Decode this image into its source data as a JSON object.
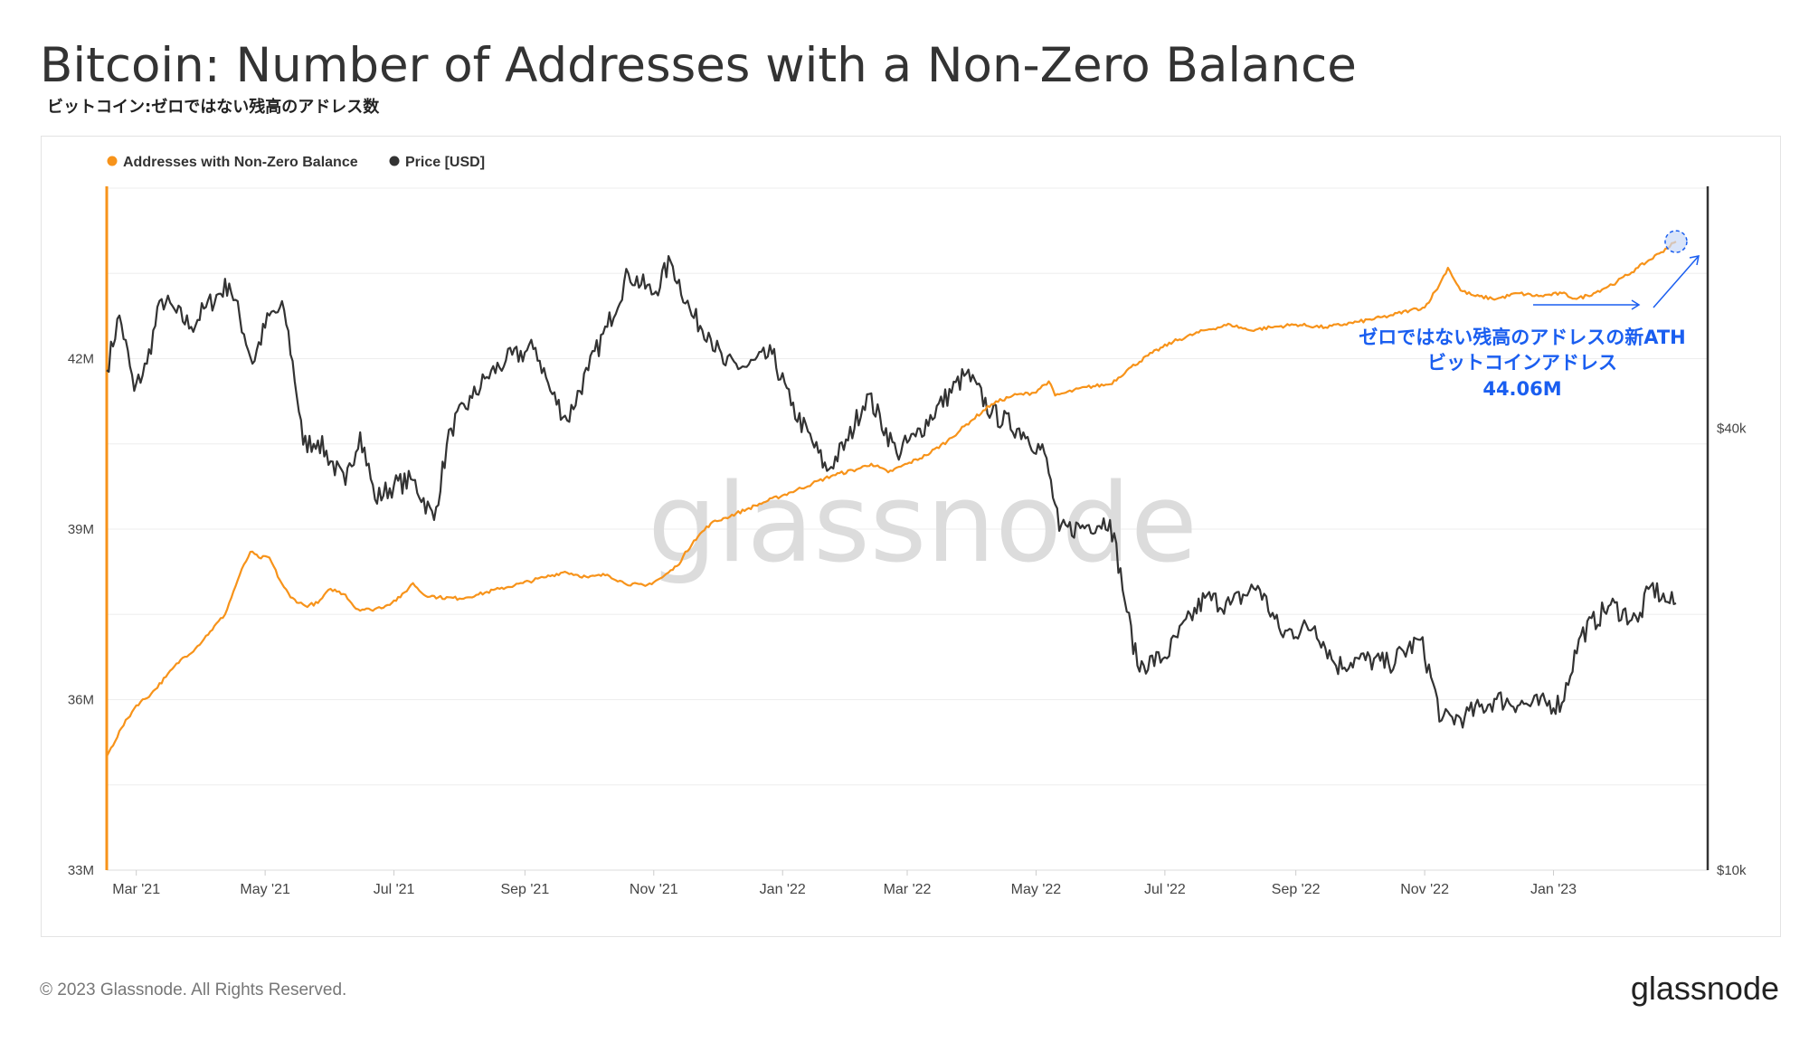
{
  "header": {
    "title": "Bitcoin: Number of Addresses with a Non-Zero Balance",
    "subtitle": "ビットコイン:ゼロではない残高のアドレス数"
  },
  "footer": {
    "copyright": "© 2023 Glassnode. All Rights Reserved.",
    "logo": "glassnode"
  },
  "watermark": "glassnode",
  "colors": {
    "addresses": "#f7931a",
    "price": "#333333",
    "annotation": "#1a5ef0",
    "grid": "#eeeeee"
  },
  "chart_data": {
    "type": "line",
    "legend_position": "top-left",
    "grid": true,
    "x_ticks": [
      "Mar '21",
      "May '21",
      "Jul '21",
      "Sep '21",
      "Nov '21",
      "Jan '22",
      "Mar '22",
      "May '22",
      "Jul '22",
      "Sep '22",
      "Nov '22",
      "Jan '23"
    ],
    "x_range": [
      "2021-02-15",
      "2023-03-15"
    ],
    "y_left": {
      "ticks": [
        "33M",
        "36M",
        "39M",
        "42M"
      ],
      "range": [
        33,
        45
      ]
    },
    "y_right": {
      "ticks": [
        "$10k",
        "$40k"
      ],
      "scale": "log",
      "range": [
        10000,
        85000
      ]
    },
    "series": [
      {
        "name": "Addresses with Non-Zero Balance",
        "axis": "left",
        "unit": "M",
        "points": [
          [
            "2021-02-15",
            35.0
          ],
          [
            "2021-02-22",
            35.5
          ],
          [
            "2021-03-01",
            35.9
          ],
          [
            "2021-03-08",
            36.1
          ],
          [
            "2021-03-15",
            36.4
          ],
          [
            "2021-03-22",
            36.7
          ],
          [
            "2021-03-29",
            36.9
          ],
          [
            "2021-04-05",
            37.2
          ],
          [
            "2021-04-12",
            37.5
          ],
          [
            "2021-04-19",
            38.2
          ],
          [
            "2021-04-24",
            38.6
          ],
          [
            "2021-04-28",
            38.5
          ],
          [
            "2021-05-03",
            38.5
          ],
          [
            "2021-05-08",
            38.1
          ],
          [
            "2021-05-13",
            37.8
          ],
          [
            "2021-05-20",
            37.65
          ],
          [
            "2021-05-26",
            37.7
          ],
          [
            "2021-06-01",
            37.95
          ],
          [
            "2021-06-08",
            37.85
          ],
          [
            "2021-06-13",
            37.6
          ],
          [
            "2021-06-20",
            37.58
          ],
          [
            "2021-06-27",
            37.65
          ],
          [
            "2021-07-04",
            37.8
          ],
          [
            "2021-07-10",
            38.05
          ],
          [
            "2021-07-15",
            37.85
          ],
          [
            "2021-07-22",
            37.8
          ],
          [
            "2021-08-01",
            37.78
          ],
          [
            "2021-08-10",
            37.85
          ],
          [
            "2021-08-20",
            37.95
          ],
          [
            "2021-08-31",
            38.05
          ],
          [
            "2021-09-10",
            38.15
          ],
          [
            "2021-09-20",
            38.25
          ],
          [
            "2021-09-25",
            38.2
          ],
          [
            "2021-10-01",
            38.15
          ],
          [
            "2021-10-10",
            38.2
          ],
          [
            "2021-10-18",
            38.05
          ],
          [
            "2021-10-28",
            38.0
          ],
          [
            "2021-11-05",
            38.15
          ],
          [
            "2021-11-12",
            38.35
          ],
          [
            "2021-11-20",
            38.8
          ],
          [
            "2021-11-28",
            39.1
          ],
          [
            "2021-12-05",
            39.2
          ],
          [
            "2021-12-15",
            39.35
          ],
          [
            "2021-12-25",
            39.5
          ],
          [
            "2022-01-05",
            39.65
          ],
          [
            "2022-01-15",
            39.8
          ],
          [
            "2022-01-25",
            39.95
          ],
          [
            "2022-02-05",
            40.05
          ],
          [
            "2022-02-12",
            40.15
          ],
          [
            "2022-02-20",
            40.0
          ],
          [
            "2022-03-01",
            40.15
          ],
          [
            "2022-03-10",
            40.3
          ],
          [
            "2022-03-20",
            40.55
          ],
          [
            "2022-03-31",
            40.9
          ],
          [
            "2022-04-10",
            41.2
          ],
          [
            "2022-04-20",
            41.35
          ],
          [
            "2022-04-30",
            41.4
          ],
          [
            "2022-05-07",
            41.6
          ],
          [
            "2022-05-10",
            41.35
          ],
          [
            "2022-05-15",
            41.4
          ],
          [
            "2022-05-25",
            41.5
          ],
          [
            "2022-06-05",
            41.55
          ],
          [
            "2022-06-15",
            41.85
          ],
          [
            "2022-06-25",
            42.1
          ],
          [
            "2022-07-05",
            42.3
          ],
          [
            "2022-07-20",
            42.5
          ],
          [
            "2022-08-01",
            42.6
          ],
          [
            "2022-08-10",
            42.5
          ],
          [
            "2022-08-20",
            42.55
          ],
          [
            "2022-09-01",
            42.6
          ],
          [
            "2022-09-15",
            42.55
          ],
          [
            "2022-10-01",
            42.65
          ],
          [
            "2022-10-15",
            42.75
          ],
          [
            "2022-10-25",
            42.85
          ],
          [
            "2022-11-01",
            42.9
          ],
          [
            "2022-11-08",
            43.3
          ],
          [
            "2022-11-12",
            43.6
          ],
          [
            "2022-11-18",
            43.2
          ],
          [
            "2022-11-25",
            43.1
          ],
          [
            "2022-12-05",
            43.05
          ],
          [
            "2022-12-15",
            43.15
          ],
          [
            "2022-12-25",
            43.1
          ],
          [
            "2023-01-05",
            43.15
          ],
          [
            "2023-01-12",
            43.05
          ],
          [
            "2023-01-20",
            43.15
          ],
          [
            "2023-01-31",
            43.35
          ],
          [
            "2023-02-10",
            43.6
          ],
          [
            "2023-02-20",
            43.85
          ],
          [
            "2023-02-28",
            44.06
          ]
        ]
      },
      {
        "name": "Price [USD]",
        "axis": "right",
        "unit": "USD",
        "points": [
          [
            "2021-02-15",
            48000
          ],
          [
            "2021-02-21",
            57000
          ],
          [
            "2021-02-28",
            45000
          ],
          [
            "2021-03-06",
            49000
          ],
          [
            "2021-03-13",
            60000
          ],
          [
            "2021-03-20",
            57500
          ],
          [
            "2021-03-27",
            55000
          ],
          [
            "2021-04-03",
            58500
          ],
          [
            "2021-04-14",
            63000
          ],
          [
            "2021-04-25",
            49000
          ],
          [
            "2021-05-03",
            57000
          ],
          [
            "2021-05-10",
            58000
          ],
          [
            "2021-05-19",
            38000
          ],
          [
            "2021-05-26",
            38500
          ],
          [
            "2021-06-08",
            33500
          ],
          [
            "2021-06-15",
            39500
          ],
          [
            "2021-06-22",
            32000
          ],
          [
            "2021-07-01",
            33500
          ],
          [
            "2021-07-10",
            34000
          ],
          [
            "2021-07-20",
            30000
          ],
          [
            "2021-07-28",
            40000
          ],
          [
            "2021-08-07",
            44000
          ],
          [
            "2021-08-14",
            47000
          ],
          [
            "2021-08-23",
            49500
          ],
          [
            "2021-09-06",
            51500
          ],
          [
            "2021-09-13",
            45000
          ],
          [
            "2021-09-21",
            41000
          ],
          [
            "2021-10-01",
            48000
          ],
          [
            "2021-10-10",
            55000
          ],
          [
            "2021-10-20",
            65000
          ],
          [
            "2021-11-01",
            61000
          ],
          [
            "2021-11-09",
            67500
          ],
          [
            "2021-11-19",
            57000
          ],
          [
            "2021-11-27",
            54000
          ],
          [
            "2021-12-04",
            49000
          ],
          [
            "2021-12-15",
            48500
          ],
          [
            "2021-12-27",
            50500
          ],
          [
            "2022-01-05",
            43000
          ],
          [
            "2022-01-22",
            35000
          ],
          [
            "2022-02-01",
            38500
          ],
          [
            "2022-02-10",
            44500
          ],
          [
            "2022-02-24",
            37000
          ],
          [
            "2022-03-05",
            39000
          ],
          [
            "2022-03-29",
            47500
          ],
          [
            "2022-04-10",
            42000
          ],
          [
            "2022-04-25",
            39500
          ],
          [
            "2022-05-05",
            37000
          ],
          [
            "2022-05-12",
            29000
          ],
          [
            "2022-05-25",
            29500
          ],
          [
            "2022-06-05",
            30000
          ],
          [
            "2022-06-13",
            22500
          ],
          [
            "2022-06-18",
            19000
          ],
          [
            "2022-07-01",
            19500
          ],
          [
            "2022-07-20",
            23500
          ],
          [
            "2022-08-01",
            23000
          ],
          [
            "2022-08-14",
            24400
          ],
          [
            "2022-08-25",
            21000
          ],
          [
            "2022-09-10",
            21500
          ],
          [
            "2022-09-20",
            19000
          ],
          [
            "2022-10-01",
            19400
          ],
          [
            "2022-10-15",
            19100
          ],
          [
            "2022-10-30",
            20600
          ],
          [
            "2022-11-09",
            16000
          ],
          [
            "2022-11-20",
            16200
          ],
          [
            "2022-12-05",
            17100
          ],
          [
            "2022-12-20",
            16800
          ],
          [
            "2023-01-05",
            16900
          ],
          [
            "2023-01-14",
            20900
          ],
          [
            "2023-01-28",
            23000
          ],
          [
            "2023-02-10",
            21800
          ],
          [
            "2023-02-16",
            24400
          ],
          [
            "2023-02-24",
            23200
          ],
          [
            "2023-02-28",
            23100
          ]
        ]
      }
    ],
    "annotation": {
      "lines": [
        "ゼロではない残高のアドレスの新ATH",
        "ビットコインアドレス",
        "44.06M"
      ],
      "target": [
        "2023-02-28",
        44.06
      ]
    }
  }
}
